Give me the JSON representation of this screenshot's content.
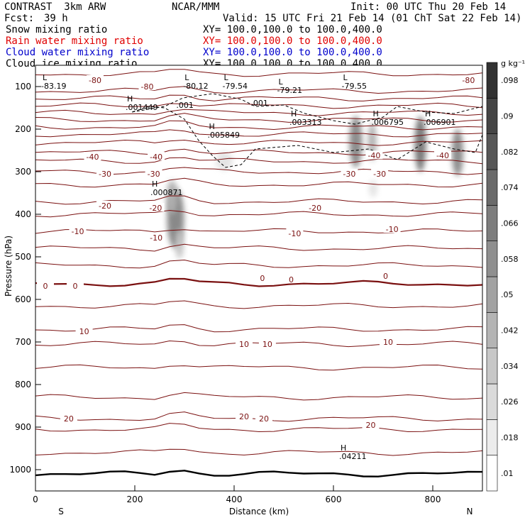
{
  "header": {
    "model": "CONTRAST  3km ARW",
    "org": "NCAR/MMM",
    "init": "Init: 00 UTC Thu 20 Feb 14",
    "fcst_label": "Fcst:",
    "fcst_value": "39 h",
    "valid": "Valid: 15 UTC Fri 21 Feb 14 (01 ChT Sat 22 Feb 14)"
  },
  "fields": [
    {
      "name": "Snow mixing ratio",
      "xy": "XY= 100.0,100.0 to 100.0,400.0",
      "color": "#000000"
    },
    {
      "name": "Rain water mixing ratio",
      "xy": "XY= 100.0,100.0 to 100.0,400.0",
      "color": "#e00000"
    },
    {
      "name": "Cloud water mixing ratio",
      "xy": "XY= 100.0,100.0 to 100.0,400.0",
      "color": "#0000cc"
    },
    {
      "name": "Cloud ice mixing ratio",
      "xy": "XY= 100.0,100.0 to 100.0,400.0",
      "color": "#000000"
    }
  ],
  "colorbar": {
    "unit_label": "g kg⁻¹",
    "tick_labels": [
      ".01",
      ".018",
      ".026",
      ".034",
      ".042",
      ".05",
      ".058",
      ".066",
      ".074",
      ".082",
      ".09",
      ".098"
    ]
  },
  "chart_data": {
    "type": "heatmap",
    "xlabel": "Distance (km)",
    "ylabel": "Pressure (hPa)",
    "xlim": [
      0,
      900
    ],
    "ylim": [
      1050,
      50
    ],
    "x_ticks": [
      "0",
      "200",
      "400",
      "600",
      "800"
    ],
    "y_ticks": [
      "100",
      "200",
      "300",
      "400",
      "500",
      "600",
      "700",
      "800",
      "900",
      "1000"
    ],
    "x_end_labels": {
      "left": "S",
      "right": "N"
    },
    "contour_field": "temperature",
    "contour_labels": [
      {
        "text": "-80",
        "x": 120,
        "p": 85
      },
      {
        "text": "-80",
        "x": 225,
        "p": 100
      },
      {
        "text": "-80",
        "x": 872,
        "p": 85
      },
      {
        "text": "-40",
        "x": 115,
        "p": 265
      },
      {
        "text": "-40",
        "x": 243,
        "p": 265
      },
      {
        "text": "-40",
        "x": 682,
        "p": 262
      },
      {
        "text": "-40",
        "x": 820,
        "p": 262
      },
      {
        "text": "-30",
        "x": 140,
        "p": 305
      },
      {
        "text": "-30",
        "x": 238,
        "p": 305
      },
      {
        "text": "-30",
        "x": 632,
        "p": 305
      },
      {
        "text": "-30",
        "x": 693,
        "p": 305
      },
      {
        "text": "-20",
        "x": 140,
        "p": 380
      },
      {
        "text": "-20",
        "x": 242,
        "p": 385
      },
      {
        "text": "-20",
        "x": 563,
        "p": 385
      },
      {
        "text": "-10",
        "x": 85,
        "p": 440
      },
      {
        "text": "-10",
        "x": 243,
        "p": 455
      },
      {
        "text": "-10",
        "x": 522,
        "p": 445
      },
      {
        "text": "-10",
        "x": 718,
        "p": 435
      },
      {
        "text": "0",
        "x": 20,
        "p": 568
      },
      {
        "text": "0",
        "x": 80,
        "p": 568
      },
      {
        "text": "0",
        "x": 457,
        "p": 550
      },
      {
        "text": "0",
        "x": 515,
        "p": 553
      },
      {
        "text": "0",
        "x": 705,
        "p": 545
      },
      {
        "text": "10",
        "x": 98,
        "p": 675
      },
      {
        "text": "10",
        "x": 420,
        "p": 705
      },
      {
        "text": "10",
        "x": 467,
        "p": 705
      },
      {
        "text": "10",
        "x": 710,
        "p": 700
      },
      {
        "text": "20",
        "x": 67,
        "p": 880
      },
      {
        "text": "20",
        "x": 420,
        "p": 875
      },
      {
        "text": "20",
        "x": 460,
        "p": 880
      },
      {
        "text": "20",
        "x": 675,
        "p": 895
      }
    ],
    "extrema": [
      {
        "marker": "L",
        "value": "-83.19",
        "x": 20,
        "p": 95,
        "color": "#7a1010"
      },
      {
        "marker": "L",
        "value": "-80.12",
        "x": 306,
        "p": 95,
        "color": "#7a1010"
      },
      {
        "marker": "L",
        "value": "-79.54",
        "x": 385,
        "p": 95,
        "color": "#7a1010"
      },
      {
        "marker": "L",
        "value": "-79.21",
        "x": 495,
        "p": 105,
        "color": "#7a1010"
      },
      {
        "marker": "L",
        "value": "-79.55",
        "x": 625,
        "p": 95,
        "color": "#7a1010"
      },
      {
        "marker": "H",
        "value": ".001449",
        "x": 190,
        "p": 145,
        "color": "#000000"
      },
      {
        "marker": "",
        "value": ".001",
        "x": 292,
        "p": 140,
        "color": "#000000"
      },
      {
        "marker": "",
        "value": ".001",
        "x": 442,
        "p": 135,
        "color": "#000000"
      },
      {
        "marker": "H",
        "value": ".005849",
        "x": 355,
        "p": 210,
        "color": "#000000"
      },
      {
        "marker": "H",
        "value": ".003313",
        "x": 520,
        "p": 180,
        "color": "#000000"
      },
      {
        "marker": "H",
        "value": ".006795",
        "x": 685,
        "p": 180,
        "color": "#000000"
      },
      {
        "marker": "H",
        "value": ".006901",
        "x": 790,
        "p": 180,
        "color": "#000000"
      },
      {
        "marker": "H",
        "value": ".000871",
        "x": 240,
        "p": 345,
        "color": "#000000"
      },
      {
        "marker": "H",
        "value": ".04211",
        "x": 620,
        "p": 965,
        "color": "#0000cc"
      }
    ],
    "shaded_cells": [
      {
        "x": 282,
        "p": 410,
        "rx": 12,
        "rp": 70,
        "level": 0.062
      },
      {
        "x": 275,
        "p": 360,
        "rx": 8,
        "rp": 40,
        "level": 0.04
      },
      {
        "x": 290,
        "p": 470,
        "rx": 6,
        "rp": 35,
        "level": 0.03
      },
      {
        "x": 645,
        "p": 230,
        "rx": 9,
        "rp": 60,
        "level": 0.06
      },
      {
        "x": 678,
        "p": 230,
        "rx": 6,
        "rp": 45,
        "level": 0.04
      },
      {
        "x": 775,
        "p": 235,
        "rx": 8,
        "rp": 65,
        "level": 0.07
      },
      {
        "x": 850,
        "p": 255,
        "rx": 8,
        "rp": 55,
        "level": 0.06
      },
      {
        "x": 380,
        "p": 275,
        "rx": 12,
        "rp": 22,
        "level": 0.014
      },
      {
        "x": 680,
        "p": 340,
        "rx": 6,
        "rp": 20,
        "level": 0.014
      }
    ]
  }
}
